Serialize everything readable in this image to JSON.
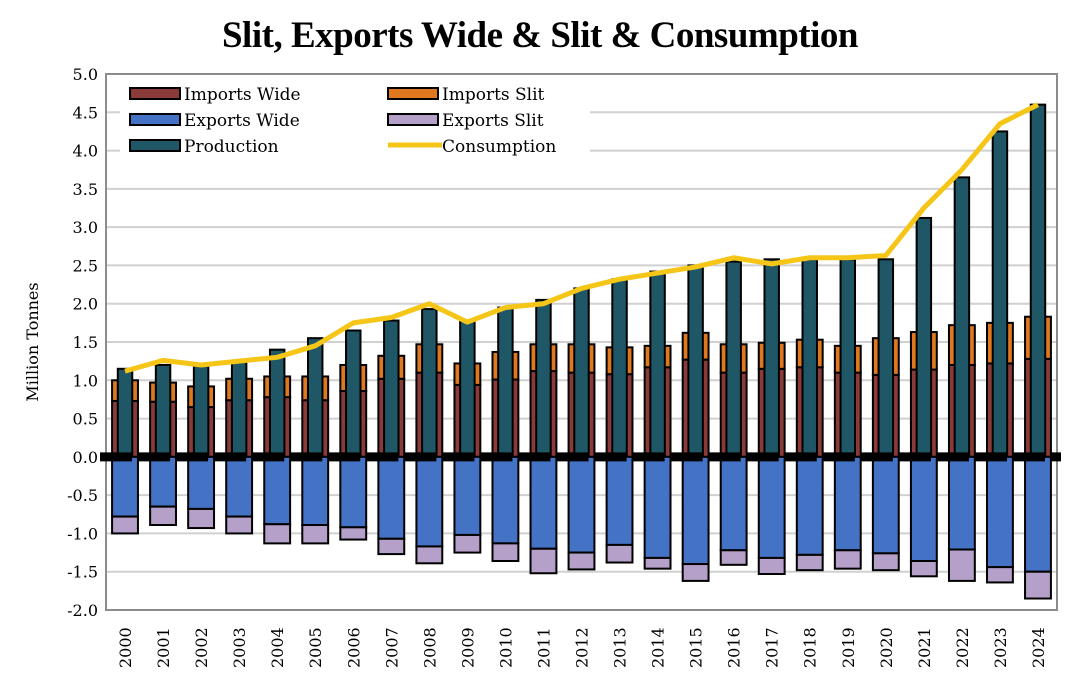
{
  "chart_data": {
    "type": "bar",
    "title": "Slit, Exports Wide & Slit & Consumption",
    "ylabel": "Million Tonnes",
    "xlabel": "",
    "ylim": [
      -2.0,
      5.0
    ],
    "yticks": [
      "5.0",
      "4.5",
      "4.0",
      "3.5",
      "3.0",
      "2.5",
      "2.0",
      "1.5",
      "1.0",
      "0.5",
      "0.0",
      "-0.5",
      "-1.0",
      "-1.5",
      "-2.0"
    ],
    "grid": true,
    "legend_placement": "top-left",
    "categories": [
      "2000",
      "2001",
      "2002",
      "2003",
      "2004",
      "2005",
      "2006",
      "2007",
      "2008",
      "2009",
      "2010",
      "2011",
      "2012",
      "2013",
      "2014",
      "2015",
      "2016",
      "2017",
      "2018",
      "2019",
      "2020",
      "2021",
      "2022",
      "2023",
      "2024"
    ],
    "series": [
      {
        "name": "Imports Wide",
        "color": "#8B3A3A",
        "values": [
          0.73,
          0.72,
          0.65,
          0.74,
          0.78,
          0.74,
          0.86,
          1.02,
          1.1,
          0.94,
          1.01,
          1.12,
          1.1,
          1.08,
          1.17,
          1.27,
          1.1,
          1.15,
          1.17,
          1.1,
          1.07,
          1.14,
          1.2,
          1.22,
          1.28
        ]
      },
      {
        "name": "Imports Slit",
        "color": "#E07820",
        "values": [
          0.27,
          0.25,
          0.27,
          0.28,
          0.27,
          0.31,
          0.34,
          0.3,
          0.37,
          0.28,
          0.36,
          0.35,
          0.37,
          0.35,
          0.28,
          0.35,
          0.37,
          0.34,
          0.36,
          0.35,
          0.48,
          0.49,
          0.52,
          0.53,
          0.55
        ]
      },
      {
        "name": "Exports Wide",
        "color": "#4472C4",
        "values": [
          -0.78,
          -0.65,
          -0.68,
          -0.78,
          -0.88,
          -0.89,
          -0.92,
          -1.07,
          -1.17,
          -1.02,
          -1.13,
          -1.2,
          -1.25,
          -1.15,
          -1.32,
          -1.4,
          -1.22,
          -1.32,
          -1.28,
          -1.22,
          -1.26,
          -1.36,
          -1.21,
          -1.44,
          -1.5
        ]
      },
      {
        "name": "Exports Slit",
        "color": "#B4A0C8",
        "values": [
          -0.22,
          -0.24,
          -0.25,
          -0.22,
          -0.25,
          -0.24,
          -0.16,
          -0.2,
          -0.22,
          -0.23,
          -0.23,
          -0.32,
          -0.22,
          -0.23,
          -0.14,
          -0.22,
          -0.19,
          -0.21,
          -0.2,
          -0.24,
          -0.22,
          -0.2,
          -0.41,
          -0.2,
          -0.35
        ]
      },
      {
        "name": "Production",
        "color": "#1F5766",
        "values": [
          1.15,
          1.2,
          1.2,
          1.25,
          1.4,
          1.55,
          1.65,
          1.78,
          1.93,
          1.77,
          1.95,
          2.05,
          2.2,
          2.32,
          2.42,
          2.5,
          2.55,
          2.58,
          2.58,
          2.58,
          2.58,
          3.12,
          3.65,
          4.25,
          4.6
        ]
      },
      {
        "name": "Consumption",
        "color": "#F5C518",
        "type": "line",
        "values": [
          1.12,
          1.26,
          1.2,
          1.25,
          1.3,
          1.45,
          1.75,
          1.82,
          2.0,
          1.76,
          1.95,
          2.0,
          2.2,
          2.32,
          2.4,
          2.48,
          2.6,
          2.52,
          2.6,
          2.6,
          2.63,
          3.25,
          3.75,
          4.35,
          4.6
        ]
      }
    ]
  }
}
